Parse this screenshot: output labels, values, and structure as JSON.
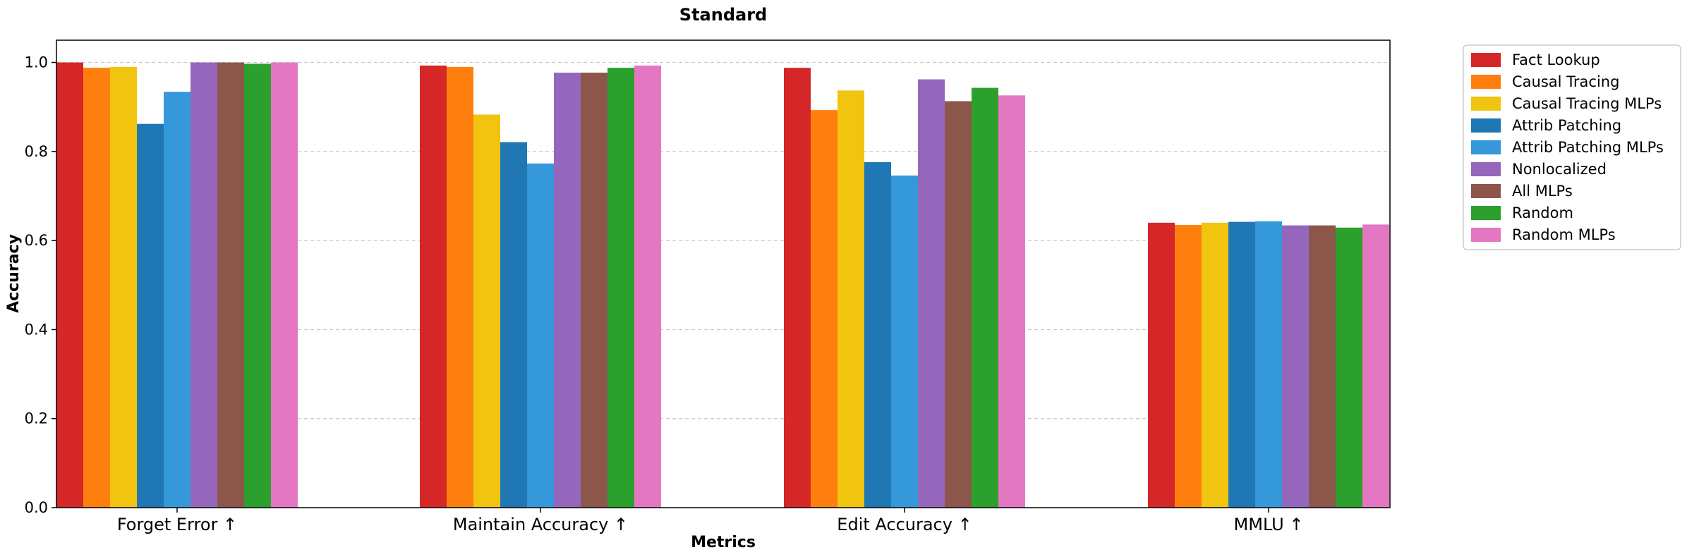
{
  "chart_data": {
    "type": "bar",
    "title": "Standard",
    "xlabel": "Metrics",
    "ylabel": "Accuracy",
    "ylim": [
      0,
      1.05
    ],
    "yticks": [
      "0.0",
      "0.2",
      "0.4",
      "0.6",
      "0.8",
      "1.0"
    ],
    "grid": "y-dashed",
    "legend_position": "outside-right",
    "categories": [
      "Forget Error ↑",
      "Maintain Accuracy ↑",
      "Edit Accuracy ↑",
      "MMLU ↑"
    ],
    "series": [
      {
        "name": "Fact Lookup",
        "color": "#d62728",
        "values": [
          1.0,
          0.993,
          0.988,
          0.64
        ]
      },
      {
        "name": "Causal Tracing",
        "color": "#ff7f0e",
        "values": [
          0.988,
          0.99,
          0.893,
          0.635
        ]
      },
      {
        "name": "Causal Tracing MLPs",
        "color": "#f1c40f",
        "values": [
          0.99,
          0.883,
          0.937,
          0.64
        ]
      },
      {
        "name": "Attrib Patching",
        "color": "#1f77b4",
        "values": [
          0.862,
          0.821,
          0.776,
          0.642
        ]
      },
      {
        "name": "Attrib Patching MLPs",
        "color": "#3498db",
        "values": [
          0.934,
          0.773,
          0.746,
          0.643
        ]
      },
      {
        "name": "Nonlocalized",
        "color": "#9467bd",
        "values": [
          1.0,
          0.977,
          0.962,
          0.634
        ]
      },
      {
        "name": "All MLPs",
        "color": "#8c564b",
        "values": [
          1.0,
          0.977,
          0.913,
          0.634
        ]
      },
      {
        "name": "Random",
        "color": "#2ca02c",
        "values": [
          0.997,
          0.988,
          0.943,
          0.629
        ]
      },
      {
        "name": "Random MLPs",
        "color": "#e377c2",
        "values": [
          1.0,
          0.993,
          0.926,
          0.636
        ]
      }
    ]
  }
}
